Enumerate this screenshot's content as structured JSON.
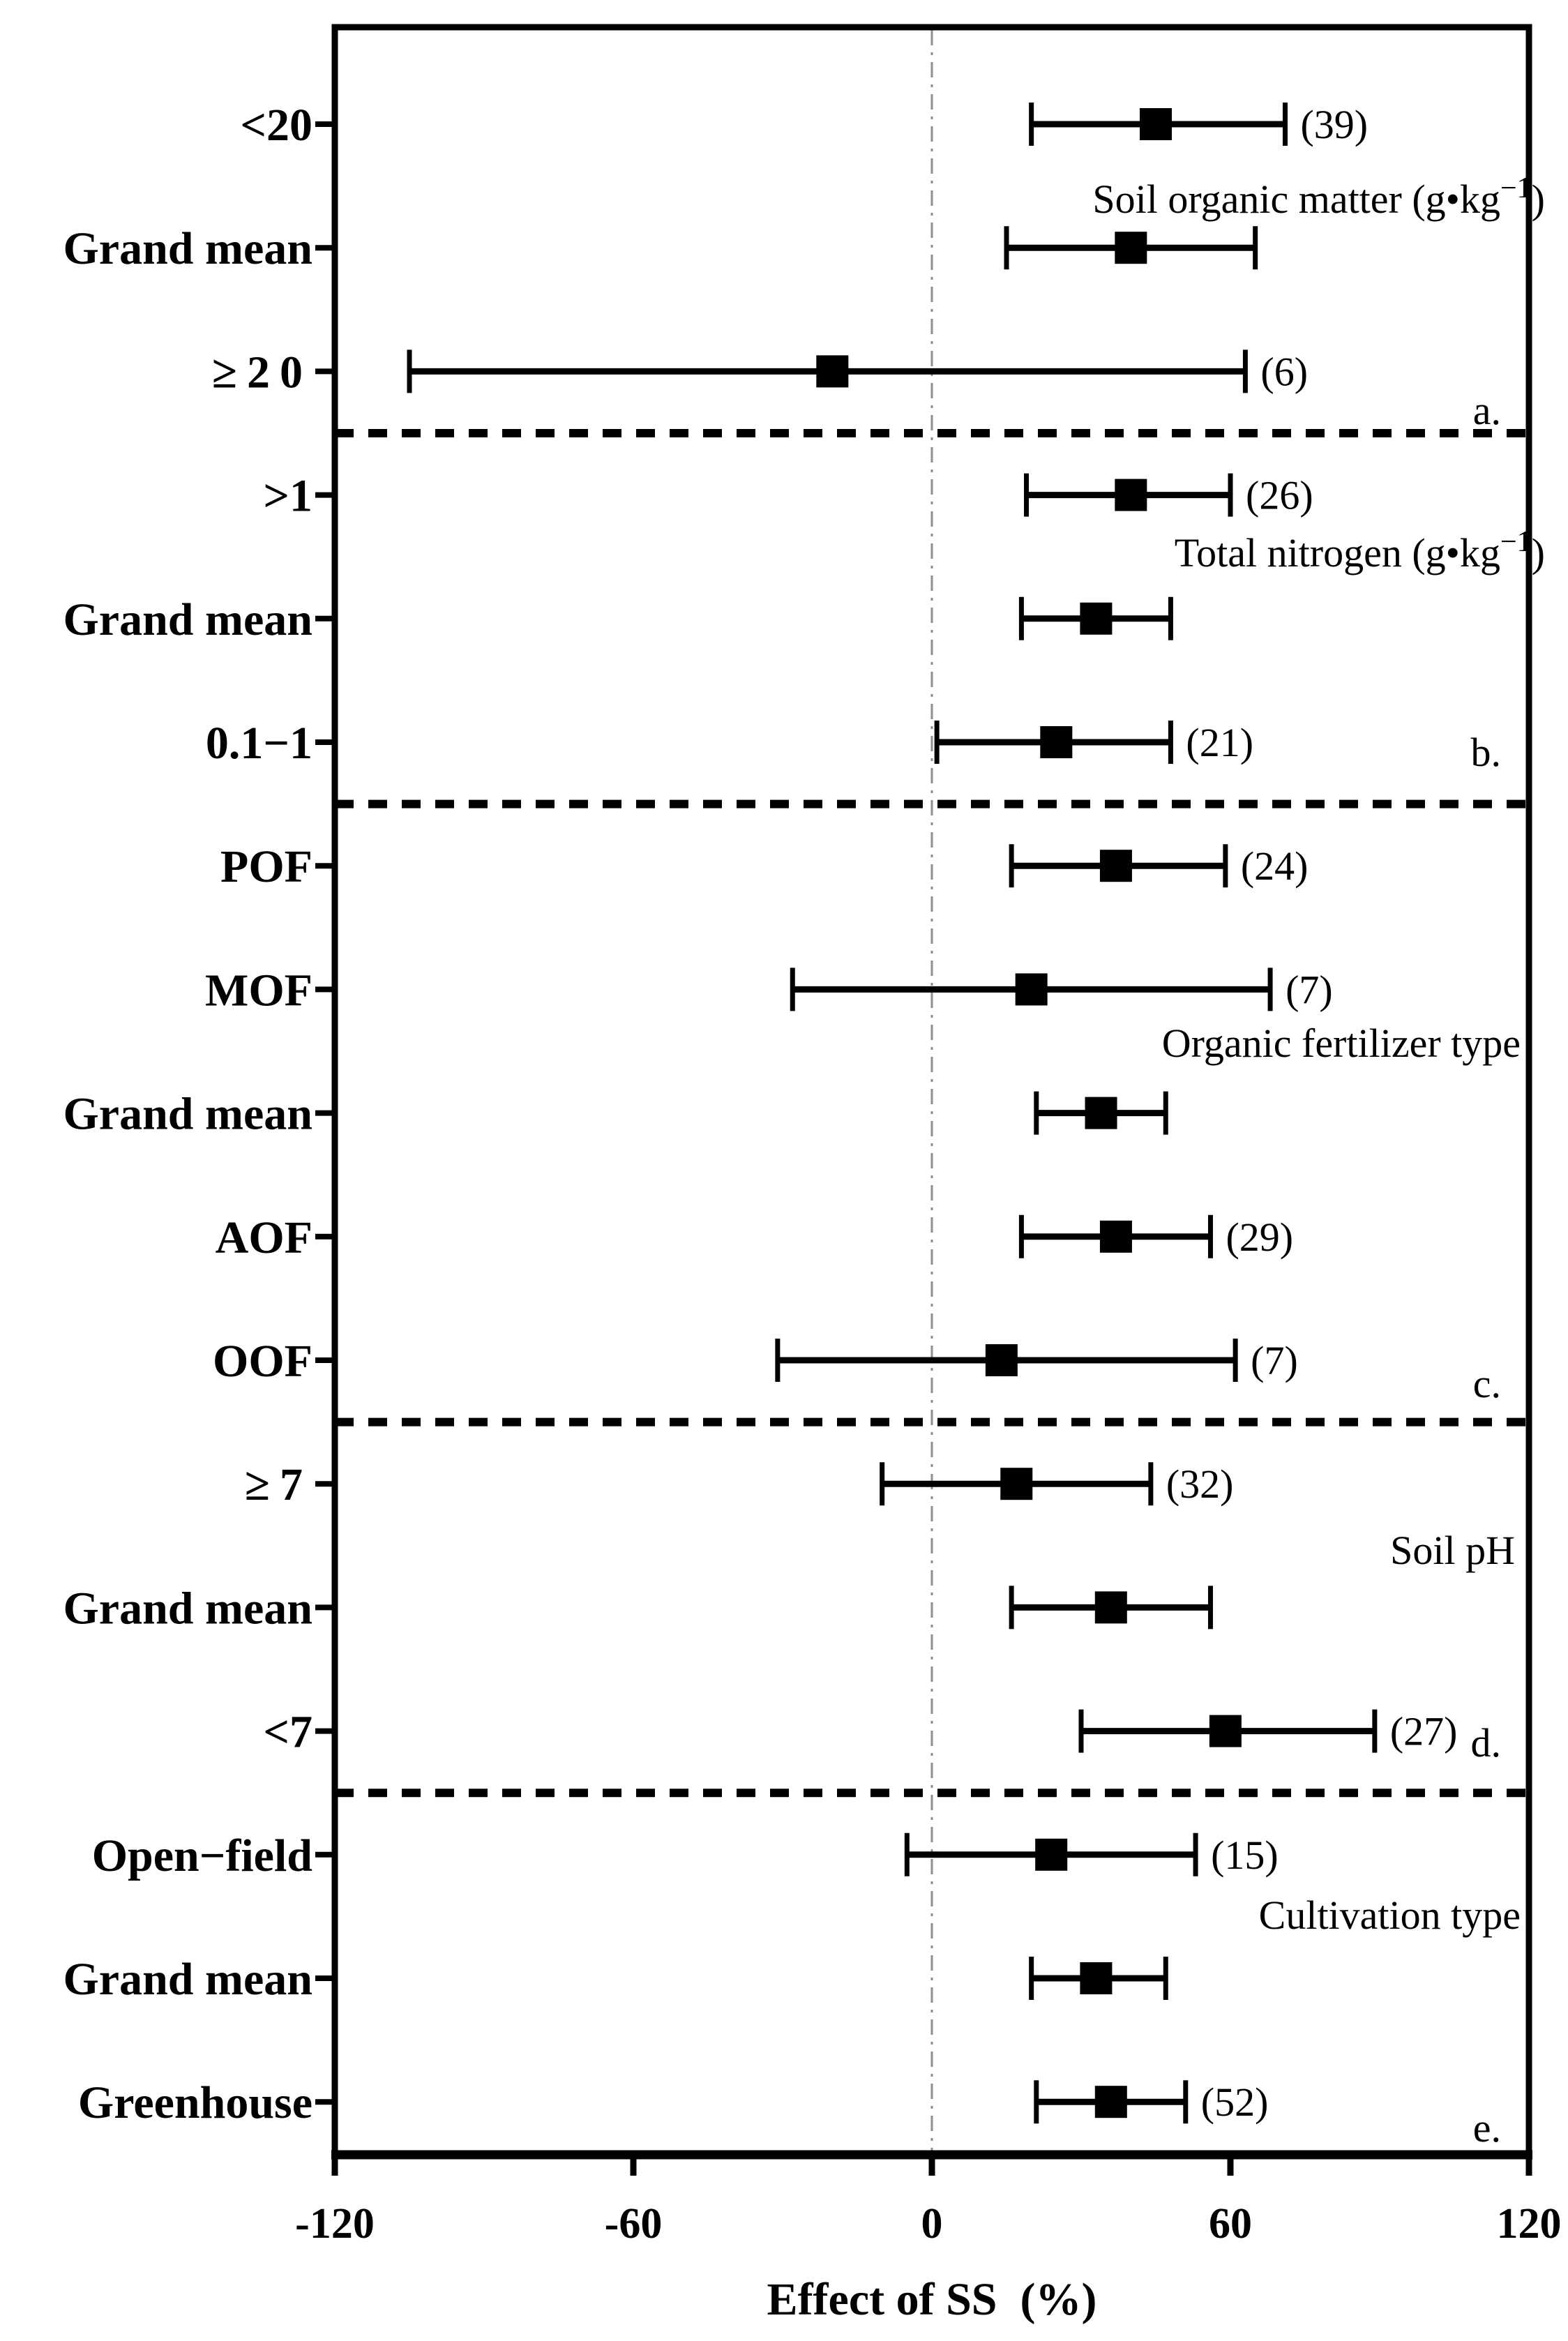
{
  "figure": {
    "background": "#ffffff",
    "ink_color": "#000000",
    "zero_line_color": "#8f8f8f"
  },
  "chart_data": {
    "type": "forest-errorbar",
    "xlabel": "Effect of SS  (%)",
    "xlim": [
      -120,
      120
    ],
    "x_ticks": [
      "-120",
      "-60",
      "0",
      "60",
      "120"
    ],
    "x_tick_values": [
      -120,
      -60,
      0,
      60,
      120
    ],
    "grid": false,
    "zero_reference_line": 0,
    "legend": "none",
    "marker": "black-square",
    "sections": [
      {
        "panel_label": "a.",
        "heading": "Soil organic matter (g•kg⁻¹)",
        "heading_main": "Soil organic matter (g•kg",
        "heading_sup": "−1",
        "heading_close": ")",
        "rows": [
          {
            "label": "<20",
            "mean": 45,
            "ci_low": 20,
            "ci_high": 71,
            "n": 39
          },
          {
            "label": "Grand mean",
            "mean": 40,
            "ci_low": 15,
            "ci_high": 65,
            "n": null
          },
          {
            "label": "≥20",
            "mean": -20,
            "ci_low": -105,
            "ci_high": 63,
            "n": 6
          }
        ]
      },
      {
        "panel_label": "b.",
        "heading": "Total nitrogen (g•kg⁻¹)",
        "heading_main": "Total nitrogen (g•kg",
        "heading_sup": "−1",
        "heading_close": ")",
        "rows": [
          {
            "label": ">1",
            "mean": 40,
            "ci_low": 19,
            "ci_high": 60,
            "n": 26
          },
          {
            "label": "Grand mean",
            "mean": 33,
            "ci_low": 18,
            "ci_high": 48,
            "n": null
          },
          {
            "label": "0.1−1",
            "mean": 25,
            "ci_low": 1,
            "ci_high": 48,
            "n": 21
          }
        ]
      },
      {
        "panel_label": "c.",
        "heading": "Organic fertilizer type",
        "heading_main": "Organic fertilizer type",
        "heading_sup": "",
        "heading_close": "",
        "rows": [
          {
            "label": "POF",
            "mean": 37,
            "ci_low": 16,
            "ci_high": 59,
            "n": 24
          },
          {
            "label": "MOF",
            "mean": 20,
            "ci_low": -28,
            "ci_high": 68,
            "n": 7
          },
          {
            "label": "Grand mean",
            "mean": 34,
            "ci_low": 21,
            "ci_high": 47,
            "n": null
          },
          {
            "label": "AOF",
            "mean": 37,
            "ci_low": 18,
            "ci_high": 56,
            "n": 29
          },
          {
            "label": "OOF",
            "mean": 14,
            "ci_low": -31,
            "ci_high": 61,
            "n": 7
          }
        ]
      },
      {
        "panel_label": "d.",
        "heading": "Soil pH",
        "heading_main": "Soil pH",
        "heading_sup": "",
        "heading_close": "",
        "rows": [
          {
            "label": "≥7",
            "mean": 17,
            "ci_low": -10,
            "ci_high": 44,
            "n": 32
          },
          {
            "label": "Grand mean",
            "mean": 36,
            "ci_low": 16,
            "ci_high": 56,
            "n": null
          },
          {
            "label": "<7",
            "mean": 59,
            "ci_low": 30,
            "ci_high": 89,
            "n": 27
          }
        ]
      },
      {
        "panel_label": "e.",
        "heading": "Cultivation type",
        "heading_main": "Cultivation type",
        "heading_sup": "",
        "heading_close": "",
        "rows": [
          {
            "label": "Open−field",
            "mean": 24,
            "ci_low": -5,
            "ci_high": 53,
            "n": 15
          },
          {
            "label": "Grand mean",
            "mean": 33,
            "ci_low": 20,
            "ci_high": 47,
            "n": null
          },
          {
            "label": "Greenhouse",
            "mean": 36,
            "ci_low": 21,
            "ci_high": 51,
            "n": 52
          }
        ]
      }
    ]
  }
}
